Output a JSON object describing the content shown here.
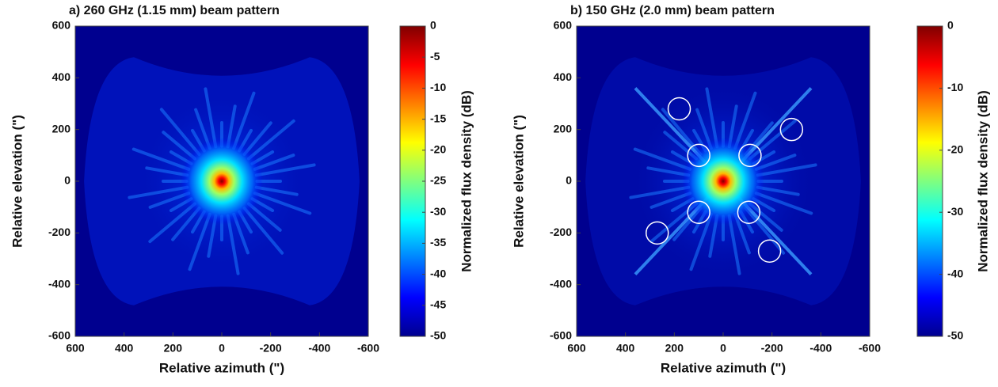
{
  "chart_data": [
    {
      "type": "heatmap",
      "title": "a) 260 GHz (1.15 mm) beam pattern",
      "xlabel": "Relative azimuth (\")",
      "ylabel": "Relative elevation (\")",
      "xlim": [
        600,
        -600
      ],
      "xticks": [
        600,
        400,
        200,
        0,
        -200,
        -400,
        -600
      ],
      "ylim": [
        -600,
        600
      ],
      "yticks": [
        600,
        400,
        200,
        0,
        -200,
        -400,
        -600
      ],
      "colorbar_label": "Normalized flux density (dB)",
      "clim": [
        -50,
        0
      ],
      "cticks": [
        0,
        -5,
        -10,
        -15,
        -20,
        -25,
        -30,
        -35,
        -40,
        -45,
        -50
      ],
      "colormap": "jet"
    },
    {
      "type": "heatmap",
      "title": "b) 150 GHz (2.0 mm) beam pattern",
      "xlabel": "Relative azimuth (\")",
      "ylabel": "Relative elevation (\")",
      "xlim": [
        600,
        -600
      ],
      "xticks": [
        600,
        400,
        200,
        0,
        -200,
        -400,
        -600
      ],
      "ylim": [
        -600,
        600
      ],
      "yticks": [
        600,
        400,
        200,
        0,
        -200,
        -400,
        -600
      ],
      "colorbar_label": "Normalized flux density (dB)",
      "clim": [
        -50,
        0
      ],
      "cticks": [
        0,
        -10,
        -20,
        -30,
        -40,
        -50
      ],
      "colormap": "jet",
      "markers": {
        "x": [
          180,
          100,
          -110,
          -280,
          270,
          100,
          -105,
          -190
        ],
        "y": [
          280,
          100,
          100,
          200,
          -200,
          -120,
          -120,
          -270
        ]
      }
    }
  ]
}
